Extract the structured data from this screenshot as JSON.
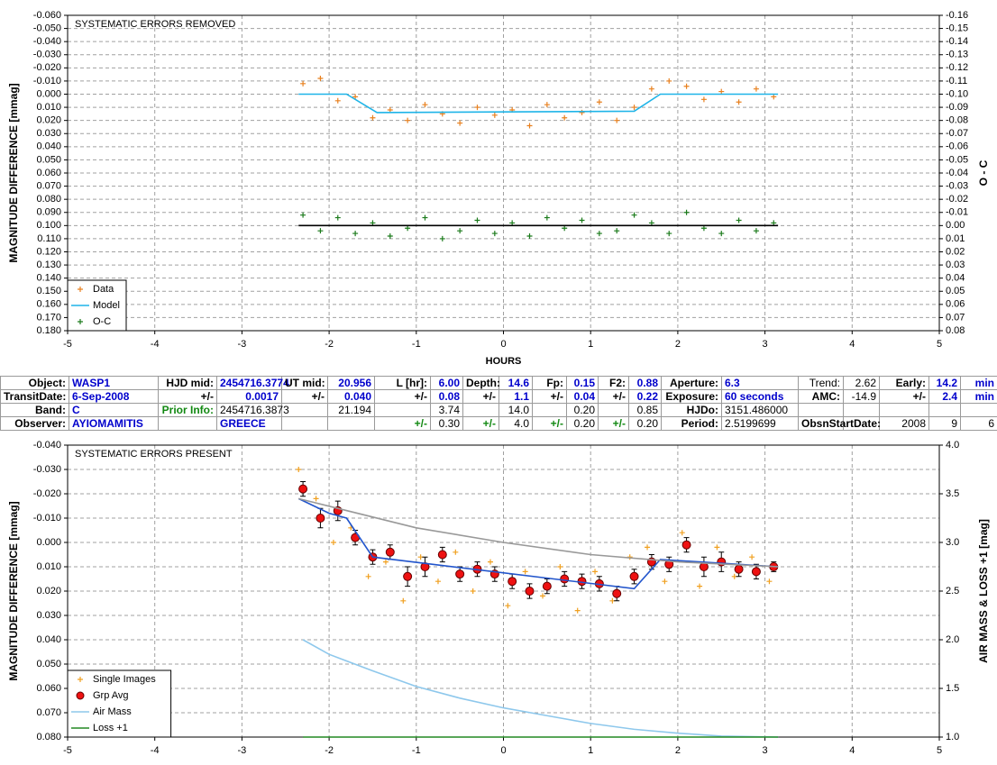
{
  "chart_data": [
    {
      "type": "scatter",
      "annotation": "SYSTEMATIC ERRORS REMOVED",
      "x_label": "HOURS",
      "y_label": "MAGNITUDE DIFFERENCE [mmag]",
      "y2_label": "O - C",
      "xlim": [
        -5,
        5
      ],
      "xticks": [
        -5,
        -4,
        -3,
        -2,
        -1,
        0,
        1,
        2,
        3,
        4,
        5
      ],
      "ylim": [
        0.18,
        -0.06
      ],
      "yticks": [
        {
          "value": -0.06,
          "label": "-0.060"
        },
        {
          "value": -0.05,
          "label": "-0.050"
        },
        {
          "value": -0.04,
          "label": "-0.040"
        },
        {
          "value": -0.03,
          "label": "-0.030"
        },
        {
          "value": -0.02,
          "label": "-0.020"
        },
        {
          "value": -0.01,
          "label": "-0.010"
        },
        {
          "value": 0,
          "label": "0.000"
        },
        {
          "value": 0.01,
          "label": "0.010"
        },
        {
          "value": 0.02,
          "label": "0.020"
        },
        {
          "value": 0.03,
          "label": "0.030"
        },
        {
          "value": 0.04,
          "label": "0.040"
        },
        {
          "value": 0.05,
          "label": "0.050"
        },
        {
          "value": 0.06,
          "label": "0.060"
        },
        {
          "value": 0.07,
          "label": "0.070"
        },
        {
          "value": 0.08,
          "label": "0.080"
        },
        {
          "value": 0.09,
          "label": "0.090"
        },
        {
          "value": 0.1,
          "label": "0.100"
        },
        {
          "value": 0.11,
          "label": "0.110"
        },
        {
          "value": 0.12,
          "label": "0.120"
        },
        {
          "value": 0.13,
          "label": "0.130"
        },
        {
          "value": 0.14,
          "label": "0.140"
        },
        {
          "value": 0.15,
          "label": "0.150"
        },
        {
          "value": 0.16,
          "label": "0.160"
        },
        {
          "value": 0.17,
          "label": "0.170"
        },
        {
          "value": 0.18,
          "label": "0.180"
        }
      ],
      "y2lim": [
        0.08,
        -0.16
      ],
      "y2ticks": [
        -0.16,
        -0.15,
        -0.14,
        -0.13,
        -0.12,
        -0.11,
        {
          "value": -0.1,
          "label": "-0.10"
        },
        -0.09,
        -0.08,
        -0.07,
        -0.06,
        -0.05,
        -0.04,
        -0.03,
        -0.02,
        -0.01,
        {
          "value": 0,
          "label": "0.00"
        },
        0.01,
        0.02,
        0.03,
        0.04,
        0.05,
        0.06,
        0.07,
        0.08
      ],
      "grid": true,
      "legend": "bottom-left",
      "series": [
        {
          "name": "Data",
          "style": "plus",
          "color": "#e8801e",
          "x": [
            -2.3,
            -2.1,
            -1.9,
            -1.7,
            -1.5,
            -1.3,
            -1.1,
            -0.9,
            -0.7,
            -0.5,
            -0.3,
            -0.1,
            0.1,
            0.3,
            0.5,
            0.7,
            0.9,
            1.1,
            1.3,
            1.5,
            1.7,
            1.9,
            2.1,
            2.3,
            2.5,
            2.7,
            2.9,
            3.1
          ],
          "values": [
            -0.008,
            -0.012,
            0.005,
            0.002,
            0.018,
            0.012,
            0.02,
            0.008,
            0.015,
            0.022,
            0.01,
            0.016,
            0.012,
            0.024,
            0.008,
            0.018,
            0.014,
            0.006,
            0.02,
            0.01,
            -0.004,
            -0.01,
            -0.006,
            0.004,
            -0.002,
            0.006,
            -0.004,
            0.002
          ]
        },
        {
          "name": "Model",
          "style": "line",
          "color": "#1eb4e8",
          "x": [
            -2.35,
            -1.8,
            -1.45,
            1.5,
            1.8,
            3.15
          ],
          "values": [
            0,
            0,
            0.014,
            0.013,
            0,
            0
          ]
        },
        {
          "name": "O-C",
          "style": "plus",
          "color": "#1a7a1a",
          "axis": "y2",
          "x": [
            -2.3,
            -2.1,
            -1.9,
            -1.7,
            -1.5,
            -1.3,
            -1.1,
            -0.9,
            -0.7,
            -0.5,
            -0.3,
            -0.1,
            0.1,
            0.3,
            0.5,
            0.7,
            0.9,
            1.1,
            1.3,
            1.5,
            1.7,
            1.9,
            2.1,
            2.3,
            2.5,
            2.7,
            2.9,
            3.1
          ],
          "values": [
            -0.008,
            0.004,
            -0.006,
            0.006,
            -0.002,
            0.008,
            0.002,
            -0.006,
            0.01,
            0.004,
            -0.004,
            0.006,
            -0.002,
            0.008,
            -0.006,
            0.002,
            -0.004,
            0.006,
            0.004,
            -0.008,
            -0.002,
            0.006,
            -0.01,
            0.002,
            0.006,
            -0.004,
            0.004,
            -0.002
          ]
        },
        {
          "style": "line",
          "color": "#000000",
          "axis": "y2",
          "x": [
            -2.35,
            3.15
          ],
          "values": [
            0,
            0
          ]
        }
      ]
    },
    {
      "type": "scatter",
      "annotation": "SYSTEMATIC ERRORS PRESENT",
      "y_label": "MAGNITUDE DIFFERENCE [mmag]",
      "y2_label": "AIR MASS & LOSS +1 [mag]",
      "xlim": [
        -5,
        5
      ],
      "xticks": [
        -5,
        -4,
        -3,
        -2,
        -1,
        0,
        1,
        2,
        3,
        4,
        5
      ],
      "ylim": [
        0.08,
        -0.04
      ],
      "yticks": [
        {
          "value": -0.04,
          "label": "-0.040"
        },
        {
          "value": -0.03,
          "label": "-0.030"
        },
        {
          "value": -0.02,
          "label": "-0.020"
        },
        {
          "value": -0.01,
          "label": "-0.010"
        },
        {
          "value": 0,
          "label": "0.000"
        },
        {
          "value": 0.01,
          "label": "0.010"
        },
        {
          "value": 0.02,
          "label": "0.020"
        },
        {
          "value": 0.03,
          "label": "0.030"
        },
        {
          "value": 0.04,
          "label": "0.040"
        },
        {
          "value": 0.05,
          "label": "0.050"
        },
        {
          "value": 0.06,
          "label": "0.060"
        },
        {
          "value": 0.07,
          "label": "0.070"
        },
        {
          "value": 0.08,
          "label": "0.080"
        }
      ],
      "y2lim": [
        1,
        4
      ],
      "y2ticks": [
        {
          "value": 1,
          "label": "1.0"
        },
        1.5,
        {
          "value": 2,
          "label": "2.0"
        },
        2.5,
        {
          "value": 3,
          "label": "3.0"
        },
        3.5,
        {
          "value": 4,
          "label": "4.0"
        }
      ],
      "grid": true,
      "legend": "bottom-left",
      "series": [
        {
          "name": "Single Images",
          "style": "plus",
          "color": "#f0a020",
          "x": [
            -2.35,
            -2.15,
            -1.95,
            -1.75,
            -1.55,
            -1.35,
            -1.15,
            -0.95,
            -0.75,
            -0.55,
            -0.35,
            -0.15,
            0.05,
            0.25,
            0.45,
            0.65,
            0.85,
            1.05,
            1.25,
            1.45,
            1.65,
            1.85,
            2.05,
            2.25,
            2.45,
            2.65,
            2.85,
            3.05
          ],
          "values": [
            -0.03,
            -0.018,
            0,
            -0.006,
            0.014,
            0.008,
            0.024,
            0.006,
            0.016,
            0.004,
            0.02,
            0.008,
            0.026,
            0.012,
            0.022,
            0.01,
            0.028,
            0.012,
            0.024,
            0.006,
            0.002,
            0.016,
            -0.004,
            0.018,
            0.002,
            0.014,
            0.006,
            0.016
          ]
        },
        {
          "name": "Grp Avg",
          "style": "circle",
          "color": "#ee1111",
          "x": [
            -2.3,
            -2.1,
            -1.9,
            -1.7,
            -1.5,
            -1.3,
            -1.1,
            -0.9,
            -0.7,
            -0.5,
            -0.3,
            -0.1,
            0.1,
            0.3,
            0.5,
            0.7,
            0.9,
            1.1,
            1.3,
            1.5,
            1.7,
            1.9,
            2.1,
            2.3,
            2.5,
            2.7,
            2.9,
            3.1
          ],
          "values": [
            -0.022,
            -0.01,
            -0.013,
            -0.002,
            0.006,
            0.004,
            0.014,
            0.01,
            0.005,
            0.013,
            0.011,
            0.013,
            0.016,
            0.02,
            0.018,
            0.015,
            0.016,
            0.017,
            0.021,
            0.014,
            0.008,
            0.009,
            0.001,
            0.01,
            0.008,
            0.011,
            0.012,
            0.01
          ],
          "errors": [
            0.003,
            0.004,
            0.004,
            0.003,
            0.003,
            0.003,
            0.004,
            0.004,
            0.003,
            0.003,
            0.003,
            0.003,
            0.003,
            0.003,
            0.003,
            0.003,
            0.003,
            0.003,
            0.003,
            0.003,
            0.003,
            0.003,
            0.003,
            0.004,
            0.004,
            0.003,
            0.003,
            0.002
          ]
        },
        {
          "name": "Air Mass",
          "style": "line",
          "color": "#8ec8ec",
          "axis": "y2",
          "x": [
            -2.3,
            -2,
            -1.5,
            -1,
            -0.5,
            0,
            0.5,
            1,
            1.5,
            2,
            2.5,
            3.15
          ],
          "values": [
            2,
            1.85,
            1.68,
            1.52,
            1.4,
            1.3,
            1.22,
            1.14,
            1.08,
            1.04,
            1.01,
            1
          ]
        },
        {
          "name": "Loss +1",
          "style": "line",
          "color": "#228822",
          "axis": "y2",
          "x": [
            -2.3,
            3.15
          ],
          "values": [
            1,
            1
          ]
        },
        {
          "style": "line",
          "color": "#2255cc",
          "x": [
            -2.35,
            -2,
            -1.8,
            -1.5,
            1.5,
            1.8,
            3.15
          ],
          "values": [
            -0.018,
            -0.012,
            -0.01,
            0.006,
            0.019,
            0.007,
            0.01
          ]
        },
        {
          "style": "line",
          "color": "#999999",
          "x": [
            -2.35,
            -1,
            0,
            1,
            2,
            3.15
          ],
          "values": [
            -0.018,
            -0.006,
            0,
            0.005,
            0.008,
            0.01
          ]
        }
      ]
    }
  ],
  "table": {
    "rows": [
      [
        "Object:",
        "WASP1",
        "HJD mid:",
        "2454716.3774",
        "UT mid:",
        "20.956",
        "L [hr]:",
        "6.00",
        "Depth:",
        "14.6",
        "Fp:",
        "0.15",
        "F2:",
        "0.88",
        "Aperture:",
        "6.3",
        "Trend:",
        "2.62",
        "Early:",
        "14.2",
        "min"
      ],
      [
        "TransitDate:",
        "6-Sep-2008",
        "+/-",
        "0.0017",
        "+/-",
        "0.040",
        "+/-",
        "0.08",
        "+/-",
        "1.1",
        "+/-",
        "0.04",
        "+/-",
        "0.22",
        "Exposure:",
        "60 seconds",
        "AMC:",
        "-14.9",
        "+/-",
        "2.4",
        "min"
      ],
      [
        "Band:",
        "C",
        "Prior Info:",
        "2454716.3873",
        null,
        "21.194",
        null,
        "3.74",
        null,
        "14.0",
        null,
        "0.20",
        null,
        "0.85",
        "HJDo:",
        "3151.486000",
        null,
        null,
        null,
        null,
        null
      ],
      [
        "Observer:",
        "AYIOMAMITIS",
        null,
        "GREECE",
        null,
        null,
        "+/-",
        "0.30",
        "+/-",
        "4.0",
        "+/-",
        "0.20",
        "+/-",
        "0.20",
        "Period:",
        "2.5199699",
        "ObsnStartDate:",
        null,
        "2008",
        "9",
        "6"
      ]
    ]
  }
}
